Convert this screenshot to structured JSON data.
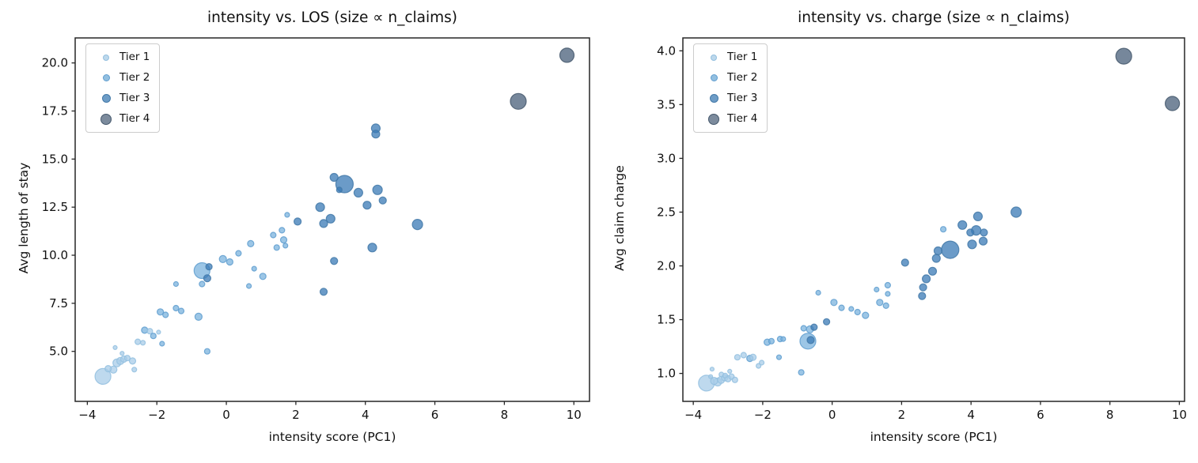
{
  "figure": {
    "background": "#ffffff",
    "size_note": "size ∝ n_claims"
  },
  "tiers": {
    "labels": [
      "Tier 1",
      "Tier 2",
      "Tier 3",
      "Tier 4"
    ],
    "fill_colors": {
      "1": "#a8cce8",
      "2": "#7bb3dd",
      "3": "#3a7ab5",
      "4": "#485f79"
    },
    "edge_colors": {
      "1": "#93bfdf",
      "2": "#5f9dcf",
      "3": "#4379a8",
      "4": "#45586c"
    },
    "legend_fill": {
      "1": "#bdd8ec",
      "2": "#92bfe0",
      "3": "#6d9cc6",
      "4": "#7c8b9d"
    },
    "legend_diameters": {
      "1": 8,
      "2": 9,
      "3": 11,
      "4": 14
    }
  },
  "chart_data": [
    {
      "type": "scatter",
      "title": "intensity vs. LOS (size ∝ n_claims)",
      "xlabel": "intensity score (PC1)",
      "ylabel": "Avg length of stay",
      "xlim": [
        -4.35,
        10.45
      ],
      "ylim": [
        2.4,
        21.3
      ],
      "xticks": [
        -4,
        -2,
        0,
        2,
        4,
        6,
        8,
        10
      ],
      "yticks": [
        5.0,
        7.5,
        10.0,
        12.5,
        15.0,
        17.5,
        20.0
      ],
      "xtick_decimals": 0,
      "ytick_decimals": 1,
      "grid": false,
      "legend_position": "upper left",
      "legend_entries": [
        "Tier 1",
        "Tier 2",
        "Tier 3",
        "Tier 4"
      ],
      "points": [
        {
          "x": 9.8,
          "y": 20.4,
          "tier": 4,
          "r": 9
        },
        {
          "x": 8.4,
          "y": 18.0,
          "tier": 4,
          "r": 10
        },
        {
          "x": 4.3,
          "y": 16.6,
          "tier": 3,
          "r": 5.5
        },
        {
          "x": 4.3,
          "y": 16.3,
          "tier": 3,
          "r": 5
        },
        {
          "x": 3.4,
          "y": 13.7,
          "tier": 3,
          "r": 11
        },
        {
          "x": 3.1,
          "y": 14.05,
          "tier": 3,
          "r": 5
        },
        {
          "x": 3.25,
          "y": 13.4,
          "tier": 3,
          "r": 3.5
        },
        {
          "x": 3.8,
          "y": 13.25,
          "tier": 3,
          "r": 5.5
        },
        {
          "x": 4.35,
          "y": 13.4,
          "tier": 3,
          "r": 6
        },
        {
          "x": 4.5,
          "y": 12.85,
          "tier": 3,
          "r": 4.5
        },
        {
          "x": 4.05,
          "y": 12.6,
          "tier": 3,
          "r": 5
        },
        {
          "x": 2.7,
          "y": 12.5,
          "tier": 3,
          "r": 5.5
        },
        {
          "x": 3.0,
          "y": 11.9,
          "tier": 3,
          "r": 5.5
        },
        {
          "x": 2.8,
          "y": 11.65,
          "tier": 3,
          "r": 5
        },
        {
          "x": 2.05,
          "y": 11.75,
          "tier": 3,
          "r": 4.5
        },
        {
          "x": 5.5,
          "y": 11.6,
          "tier": 3,
          "r": 6.5
        },
        {
          "x": 4.2,
          "y": 10.4,
          "tier": 3,
          "r": 5.5
        },
        {
          "x": 3.1,
          "y": 9.7,
          "tier": 3,
          "r": 4.5
        },
        {
          "x": 2.8,
          "y": 8.1,
          "tier": 3,
          "r": 4.5
        },
        {
          "x": 1.75,
          "y": 12.1,
          "tier": 2,
          "r": 3
        },
        {
          "x": 1.6,
          "y": 11.3,
          "tier": 2,
          "r": 3.5
        },
        {
          "x": 1.35,
          "y": 11.05,
          "tier": 2,
          "r": 3.5
        },
        {
          "x": 1.65,
          "y": 10.8,
          "tier": 2,
          "r": 4
        },
        {
          "x": 1.45,
          "y": 10.4,
          "tier": 2,
          "r": 3.5
        },
        {
          "x": 1.7,
          "y": 10.5,
          "tier": 2,
          "r": 3
        },
        {
          "x": 0.7,
          "y": 10.6,
          "tier": 2,
          "r": 4
        },
        {
          "x": 0.35,
          "y": 10.1,
          "tier": 2,
          "r": 3.5
        },
        {
          "x": -0.1,
          "y": 9.8,
          "tier": 2,
          "r": 4.5
        },
        {
          "x": 0.1,
          "y": 9.65,
          "tier": 2,
          "r": 4
        },
        {
          "x": 1.05,
          "y": 8.9,
          "tier": 2,
          "r": 4
        },
        {
          "x": 0.8,
          "y": 9.3,
          "tier": 2,
          "r": 3
        },
        {
          "x": 0.65,
          "y": 8.4,
          "tier": 2,
          "r": 3
        },
        {
          "x": -0.7,
          "y": 9.2,
          "tier": 2,
          "r": 10
        },
        {
          "x": -0.5,
          "y": 9.4,
          "tier": 3,
          "r": 4
        },
        {
          "x": -0.55,
          "y": 8.8,
          "tier": 3,
          "r": 4.5
        },
        {
          "x": -0.7,
          "y": 8.5,
          "tier": 2,
          "r": 3.5
        },
        {
          "x": -0.8,
          "y": 6.8,
          "tier": 2,
          "r": 4.5
        },
        {
          "x": -0.55,
          "y": 5.0,
          "tier": 2,
          "r": 3.5
        },
        {
          "x": -1.45,
          "y": 8.5,
          "tier": 2,
          "r": 3
        },
        {
          "x": -1.9,
          "y": 7.05,
          "tier": 2,
          "r": 4
        },
        {
          "x": -1.75,
          "y": 6.9,
          "tier": 2,
          "r": 3.5
        },
        {
          "x": -1.45,
          "y": 7.25,
          "tier": 2,
          "r": 3.5
        },
        {
          "x": -1.3,
          "y": 7.1,
          "tier": 2,
          "r": 3.5
        },
        {
          "x": -1.85,
          "y": 5.4,
          "tier": 2,
          "r": 3
        },
        {
          "x": -2.35,
          "y": 6.1,
          "tier": 2,
          "r": 4
        },
        {
          "x": -2.2,
          "y": 6.05,
          "tier": 1,
          "r": 3.5
        },
        {
          "x": -2.1,
          "y": 5.8,
          "tier": 2,
          "r": 3.5
        },
        {
          "x": -2.55,
          "y": 5.5,
          "tier": 1,
          "r": 3.5
        },
        {
          "x": -2.4,
          "y": 5.45,
          "tier": 1,
          "r": 3
        },
        {
          "x": -1.95,
          "y": 6.0,
          "tier": 1,
          "r": 2.5
        },
        {
          "x": -3.2,
          "y": 5.2,
          "tier": 1,
          "r": 2.5
        },
        {
          "x": -3.55,
          "y": 3.7,
          "tier": 1,
          "r": 10
        },
        {
          "x": -3.4,
          "y": 4.1,
          "tier": 1,
          "r": 4
        },
        {
          "x": -3.25,
          "y": 4.05,
          "tier": 1,
          "r": 4.5
        },
        {
          "x": -3.15,
          "y": 4.4,
          "tier": 1,
          "r": 5
        },
        {
          "x": -3.05,
          "y": 4.5,
          "tier": 1,
          "r": 4.5
        },
        {
          "x": -2.95,
          "y": 4.6,
          "tier": 1,
          "r": 4
        },
        {
          "x": -2.85,
          "y": 4.65,
          "tier": 1,
          "r": 3.5
        },
        {
          "x": -2.7,
          "y": 4.5,
          "tier": 1,
          "r": 4
        },
        {
          "x": -2.65,
          "y": 4.05,
          "tier": 1,
          "r": 3
        },
        {
          "x": -3.0,
          "y": 4.9,
          "tier": 1,
          "r": 2.5
        }
      ]
    },
    {
      "type": "scatter",
      "title": "intensity vs. charge (size ∝ n_claims)",
      "xlabel": "intensity score (PC1)",
      "ylabel": "Avg claim charge",
      "xlim": [
        -4.3,
        10.15
      ],
      "ylim": [
        0.74,
        4.12
      ],
      "xticks": [
        -4,
        -2,
        0,
        2,
        4,
        6,
        8,
        10
      ],
      "yticks": [
        1.0,
        1.5,
        2.0,
        2.5,
        3.0,
        3.5,
        4.0
      ],
      "xtick_decimals": 0,
      "ytick_decimals": 1,
      "grid": false,
      "legend_position": "upper left",
      "legend_entries": [
        "Tier 1",
        "Tier 2",
        "Tier 3",
        "Tier 4"
      ],
      "points": [
        {
          "x": 9.8,
          "y": 3.51,
          "tier": 4,
          "r": 9
        },
        {
          "x": 8.4,
          "y": 3.95,
          "tier": 4,
          "r": 10
        },
        {
          "x": 5.3,
          "y": 2.5,
          "tier": 3,
          "r": 6.5
        },
        {
          "x": 4.2,
          "y": 2.46,
          "tier": 3,
          "r": 5.5
        },
        {
          "x": 3.75,
          "y": 2.38,
          "tier": 3,
          "r": 5.5
        },
        {
          "x": 4.15,
          "y": 2.33,
          "tier": 3,
          "r": 6
        },
        {
          "x": 3.98,
          "y": 2.31,
          "tier": 3,
          "r": 4.5
        },
        {
          "x": 4.37,
          "y": 2.31,
          "tier": 3,
          "r": 4.5
        },
        {
          "x": 4.35,
          "y": 2.23,
          "tier": 3,
          "r": 5
        },
        {
          "x": 4.03,
          "y": 2.2,
          "tier": 3,
          "r": 5.5
        },
        {
          "x": 3.4,
          "y": 2.15,
          "tier": 3,
          "r": 11
        },
        {
          "x": 3.05,
          "y": 2.14,
          "tier": 3,
          "r": 5
        },
        {
          "x": 3.0,
          "y": 2.07,
          "tier": 3,
          "r": 5
        },
        {
          "x": 2.1,
          "y": 2.03,
          "tier": 3,
          "r": 4.5
        },
        {
          "x": 2.89,
          "y": 1.95,
          "tier": 3,
          "r": 5
        },
        {
          "x": 2.71,
          "y": 1.88,
          "tier": 3,
          "r": 5
        },
        {
          "x": 2.62,
          "y": 1.8,
          "tier": 3,
          "r": 4.5
        },
        {
          "x": 2.59,
          "y": 1.72,
          "tier": 3,
          "r": 4.5
        },
        {
          "x": 3.2,
          "y": 2.34,
          "tier": 2,
          "r": 3.5
        },
        {
          "x": 1.28,
          "y": 1.78,
          "tier": 2,
          "r": 3
        },
        {
          "x": 1.6,
          "y": 1.82,
          "tier": 2,
          "r": 3.5
        },
        {
          "x": 1.6,
          "y": 1.74,
          "tier": 2,
          "r": 3
        },
        {
          "x": 1.37,
          "y": 1.66,
          "tier": 2,
          "r": 4
        },
        {
          "x": 1.55,
          "y": 1.63,
          "tier": 2,
          "r": 3.5
        },
        {
          "x": 0.05,
          "y": 1.66,
          "tier": 2,
          "r": 4
        },
        {
          "x": 0.27,
          "y": 1.61,
          "tier": 2,
          "r": 3.5
        },
        {
          "x": 0.55,
          "y": 1.6,
          "tier": 2,
          "r": 3
        },
        {
          "x": 0.73,
          "y": 1.57,
          "tier": 2,
          "r": 3.5
        },
        {
          "x": 0.96,
          "y": 1.54,
          "tier": 2,
          "r": 4
        },
        {
          "x": -0.4,
          "y": 1.75,
          "tier": 2,
          "r": 3
        },
        {
          "x": -0.16,
          "y": 1.48,
          "tier": 3,
          "r": 4
        },
        {
          "x": -0.52,
          "y": 1.43,
          "tier": 3,
          "r": 4
        },
        {
          "x": -0.64,
          "y": 1.41,
          "tier": 2,
          "r": 4.5
        },
        {
          "x": -0.82,
          "y": 1.42,
          "tier": 2,
          "r": 3.5
        },
        {
          "x": -0.7,
          "y": 1.3,
          "tier": 2,
          "r": 10
        },
        {
          "x": -0.62,
          "y": 1.31,
          "tier": 3,
          "r": 4.5
        },
        {
          "x": -1.87,
          "y": 1.29,
          "tier": 2,
          "r": 4
        },
        {
          "x": -1.75,
          "y": 1.3,
          "tier": 2,
          "r": 3.5
        },
        {
          "x": -1.5,
          "y": 1.32,
          "tier": 2,
          "r": 3.5
        },
        {
          "x": -1.41,
          "y": 1.32,
          "tier": 2,
          "r": 3
        },
        {
          "x": -1.53,
          "y": 1.15,
          "tier": 2,
          "r": 3
        },
        {
          "x": -0.89,
          "y": 1.01,
          "tier": 2,
          "r": 3.5
        },
        {
          "x": -2.73,
          "y": 1.15,
          "tier": 1,
          "r": 3.5
        },
        {
          "x": -2.55,
          "y": 1.17,
          "tier": 1,
          "r": 3.5
        },
        {
          "x": -2.37,
          "y": 1.14,
          "tier": 2,
          "r": 4
        },
        {
          "x": -2.28,
          "y": 1.15,
          "tier": 1,
          "r": 4
        },
        {
          "x": -2.12,
          "y": 1.07,
          "tier": 1,
          "r": 3
        },
        {
          "x": -2.03,
          "y": 1.1,
          "tier": 1,
          "r": 3
        },
        {
          "x": -3.46,
          "y": 1.04,
          "tier": 1,
          "r": 2.5
        },
        {
          "x": -3.62,
          "y": 0.91,
          "tier": 1,
          "r": 10
        },
        {
          "x": -3.19,
          "y": 0.99,
          "tier": 1,
          "r": 3
        },
        {
          "x": -3.08,
          "y": 0.98,
          "tier": 1,
          "r": 3
        },
        {
          "x": -3.4,
          "y": 0.93,
          "tier": 1,
          "r": 4.5
        },
        {
          "x": -3.3,
          "y": 0.92,
          "tier": 1,
          "r": 5
        },
        {
          "x": -3.2,
          "y": 0.94,
          "tier": 1,
          "r": 4.5
        },
        {
          "x": -3.1,
          "y": 0.96,
          "tier": 1,
          "r": 4
        },
        {
          "x": -3.0,
          "y": 0.95,
          "tier": 1,
          "r": 4
        },
        {
          "x": -2.9,
          "y": 0.97,
          "tier": 1,
          "r": 3.5
        },
        {
          "x": -2.8,
          "y": 0.94,
          "tier": 1,
          "r": 3.5
        },
        {
          "x": -2.95,
          "y": 1.02,
          "tier": 1,
          "r": 2.5
        },
        {
          "x": -3.5,
          "y": 0.97,
          "tier": 1,
          "r": 2.5
        }
      ]
    }
  ]
}
